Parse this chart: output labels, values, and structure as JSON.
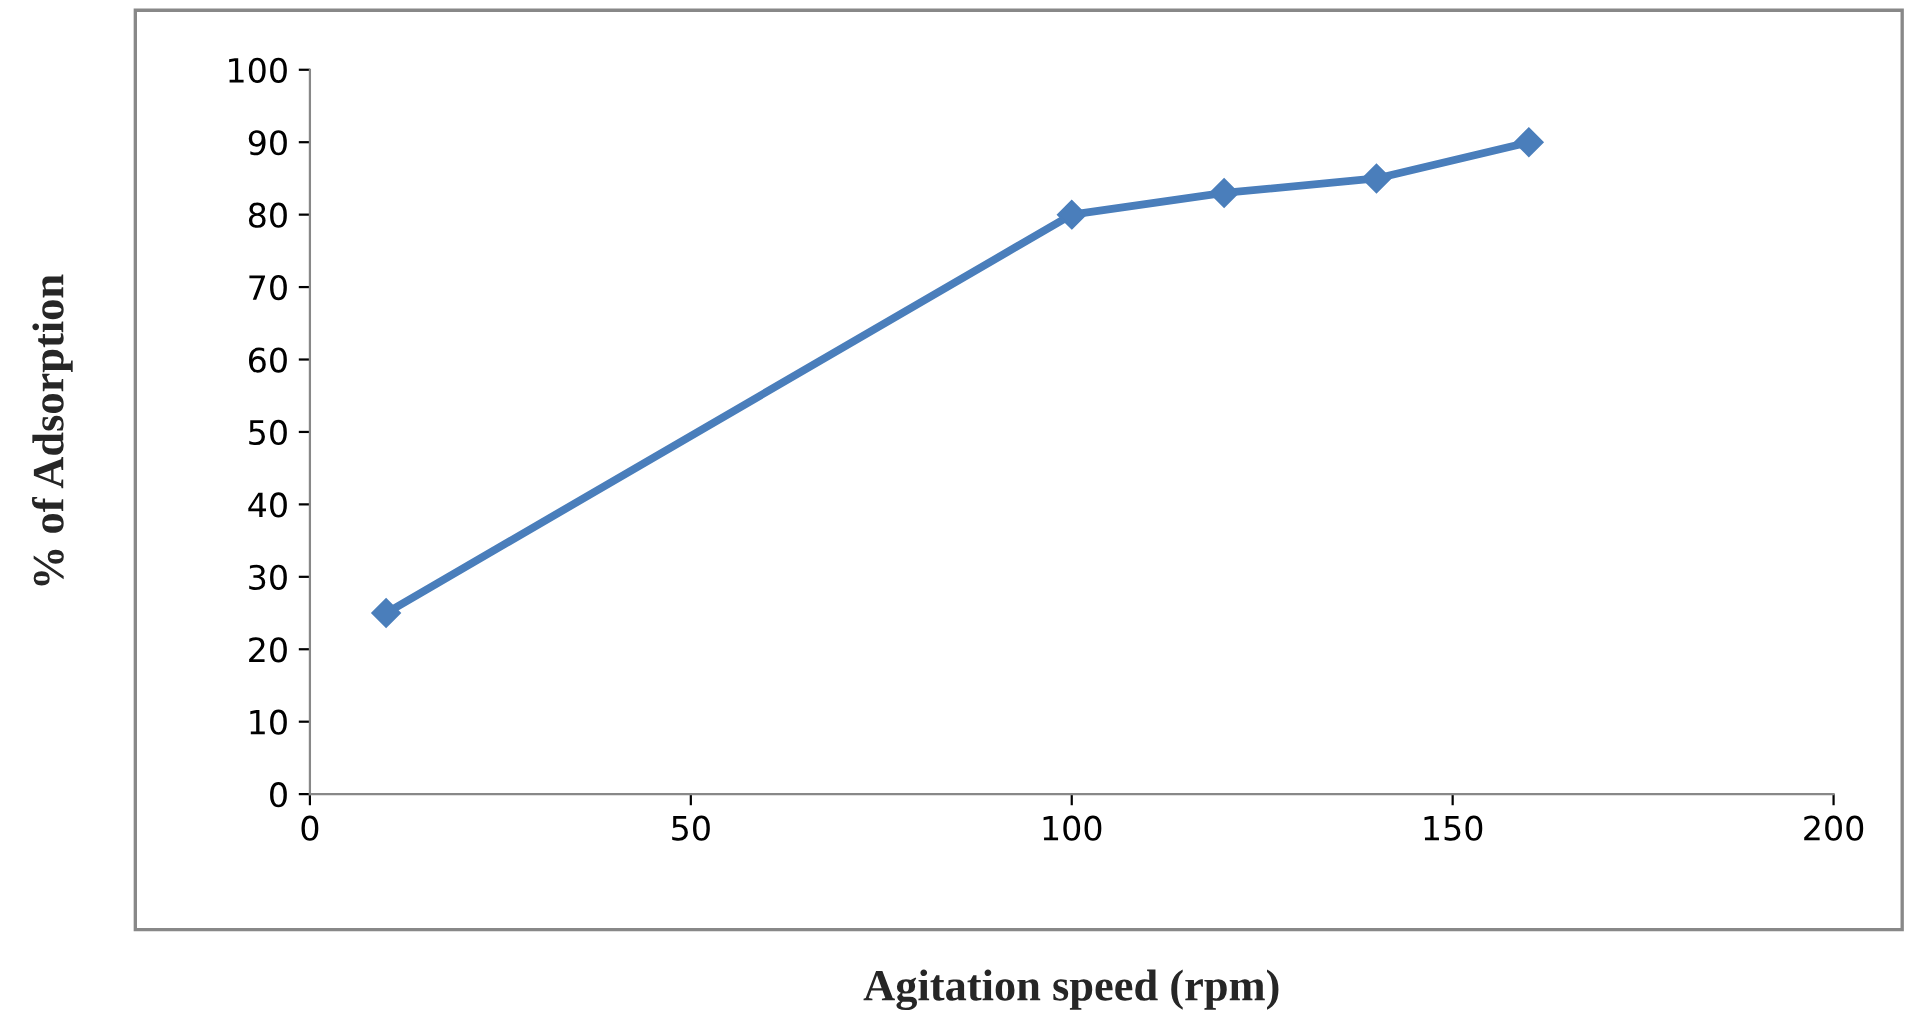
{
  "chart_data": {
    "type": "line",
    "xlabel": "Agitation speed (rpm)",
    "ylabel": "% of Adsorption",
    "x": [
      10,
      100,
      120,
      140,
      160
    ],
    "series": [
      {
        "color": "#4a7ebb",
        "values": [
          25,
          80,
          83,
          85,
          90
        ]
      }
    ],
    "xlim": [
      0,
      200
    ],
    "xticks": [
      0,
      50,
      100,
      150,
      200
    ],
    "ylim": [
      0,
      100
    ],
    "yticks": [
      0,
      10,
      20,
      30,
      40,
      50,
      60,
      70,
      80,
      90,
      100
    ],
    "marker": "diamond",
    "line_style": "solid",
    "grid": false,
    "legend": false
  }
}
